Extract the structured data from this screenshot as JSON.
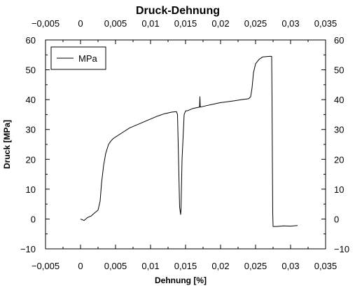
{
  "chart_data": {
    "type": "line",
    "title": "Druck-Dehnung",
    "xlabel": "Dehnung [%]",
    "ylabel": "Druck [MPa]",
    "xlim": [
      -0.005,
      0.035
    ],
    "ylim": [
      -10,
      60
    ],
    "x_ticks": [
      -0.005,
      0,
      0.005,
      0.01,
      0.015,
      0.02,
      0.025,
      0.03,
      0.035
    ],
    "x_tick_labels": [
      "−0,005",
      "0",
      "0,005",
      "0,01",
      "0,015",
      "0,02",
      "0,025",
      "0,03",
      "0,035"
    ],
    "y_ticks": [
      60,
      50,
      40,
      30,
      20,
      10,
      0,
      -10
    ],
    "y_tick_labels": [
      "60",
      "50",
      "40",
      "30",
      "20",
      "10",
      "0",
      "−10"
    ],
    "legend_position": "top-left",
    "grid": false,
    "series": [
      {
        "name": "MPa",
        "color": "#000000",
        "x": [
          0,
          0.0005,
          0.001,
          0.0015,
          0.002,
          0.0025,
          0.0028,
          0.003,
          0.0033,
          0.0036,
          0.004,
          0.0043,
          0.0046,
          0.005,
          0.006,
          0.007,
          0.008,
          0.009,
          0.01,
          0.011,
          0.012,
          0.013,
          0.0137,
          0.01385,
          0.014,
          0.01415,
          0.0143,
          0.01435,
          0.0145,
          0.0148,
          0.015,
          0.0153,
          0.016,
          0.017,
          0.01705,
          0.0171,
          0.018,
          0.019,
          0.02,
          0.021,
          0.022,
          0.023,
          0.024,
          0.0243,
          0.0245,
          0.0247,
          0.025,
          0.0255,
          0.026,
          0.027,
          0.0273,
          0.02735,
          0.0274,
          0.02745,
          0.0275,
          0.028,
          0.029,
          0.03,
          0.031
        ],
        "y": [
          0,
          -0.5,
          0.5,
          1,
          2,
          3,
          6,
          12,
          18,
          22,
          25,
          26,
          26.8,
          27.5,
          29,
          30.5,
          31.5,
          32.5,
          33.5,
          34.5,
          35.3,
          35.8,
          36,
          35,
          20,
          4,
          1.5,
          3,
          20,
          35,
          36.2,
          36.3,
          37,
          37.5,
          41,
          37.5,
          38,
          38.5,
          39,
          39.3,
          39.6,
          40,
          40.3,
          41,
          44,
          49,
          52,
          53.5,
          54.3,
          54.5,
          54.5,
          40,
          20,
          2,
          -2.5,
          -2.5,
          -2.3,
          -2.4,
          -2.2
        ]
      }
    ]
  }
}
